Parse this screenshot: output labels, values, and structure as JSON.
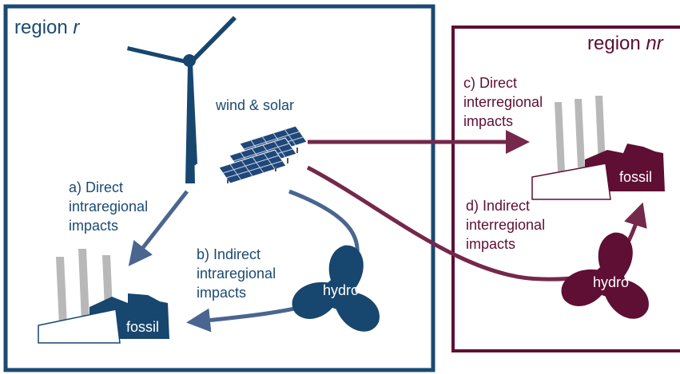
{
  "regions": {
    "left": {
      "label": "region",
      "name": "r"
    },
    "right": {
      "label": "region",
      "name": "nr"
    }
  },
  "sources": {
    "wind_solar": "wind & solar",
    "hydro_left": "hydro",
    "fossil_left": "fossil",
    "hydro_right": "hydro",
    "fossil_right": "fossil"
  },
  "impacts": {
    "a": [
      "a) Direct",
      "intraregional",
      "impacts"
    ],
    "b": [
      "b) Indirect",
      "intraregional",
      "impacts"
    ],
    "c": [
      "c) Direct",
      "interregional",
      "impacts"
    ],
    "d": [
      "d) Indirect",
      "interregional",
      "impacts"
    ]
  }
}
